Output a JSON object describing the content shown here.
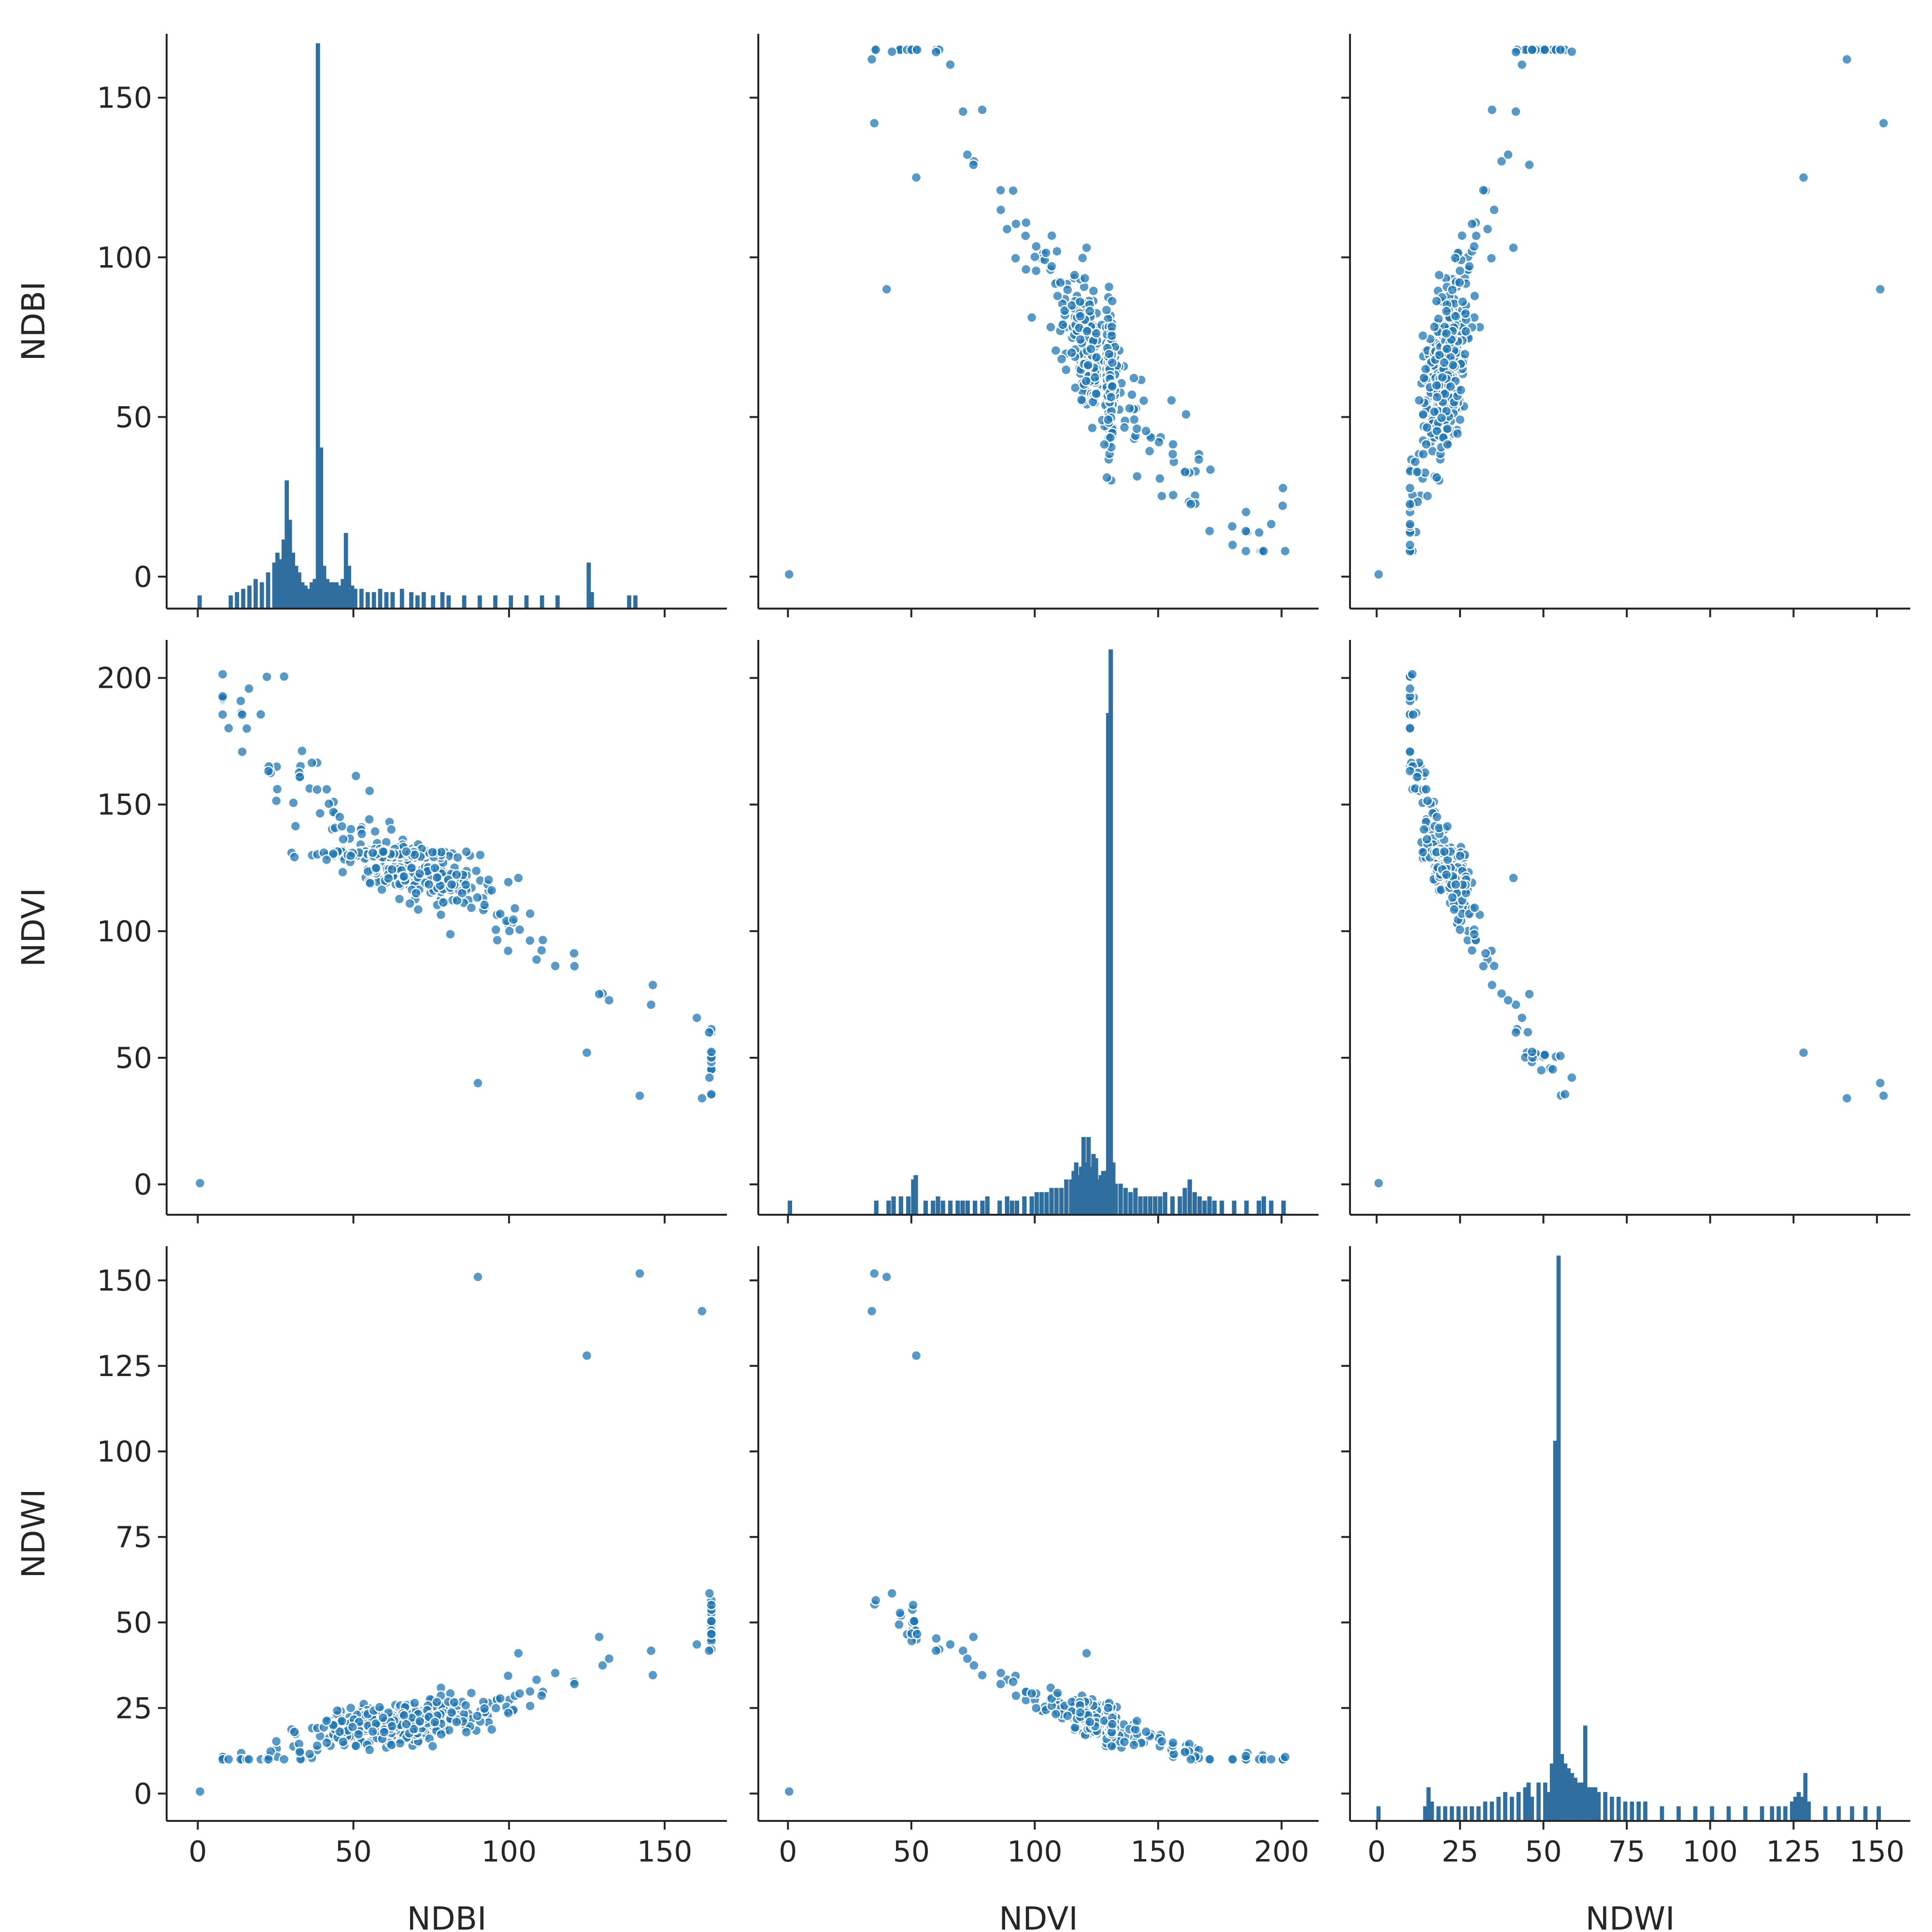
{
  "chart_data": {
    "type": "pairplot",
    "variables": [
      "NDBI",
      "NDVI",
      "NDWI"
    ],
    "colors": {
      "marker": "#1f77b4",
      "bar": "#2f6e9f",
      "edge": "#ffffff",
      "axis": "#262626"
    },
    "axes": {
      "NDBI": {
        "label": "NDBI",
        "range": [
          -10,
          170
        ],
        "ticks": [
          0,
          50,
          100,
          150
        ]
      },
      "NDVI": {
        "label": "NDVI",
        "range": [
          -12,
          215
        ],
        "ticks": [
          0,
          50,
          100,
          150,
          200
        ]
      },
      "NDWI": {
        "label": "NDWI",
        "range": [
          -8,
          160
        ],
        "ticks": [
          0,
          25,
          50,
          75,
          100,
          125,
          150
        ]
      }
    },
    "histograms": {
      "NDBI": {
        "bin_width": 1.2,
        "bins": [
          [
            0,
            1
          ],
          [
            10,
            1
          ],
          [
            12,
            2
          ],
          [
            14,
            3
          ],
          [
            16,
            4
          ],
          [
            18,
            6
          ],
          [
            20,
            5
          ],
          [
            22,
            8
          ],
          [
            24,
            11
          ],
          [
            25,
            14
          ],
          [
            26,
            12
          ],
          [
            27,
            18
          ],
          [
            28,
            36
          ],
          [
            29,
            24
          ],
          [
            30,
            14
          ],
          [
            31,
            10
          ],
          [
            32,
            8
          ],
          [
            33,
            5
          ],
          [
            34,
            4
          ],
          [
            35,
            3
          ],
          [
            36,
            5
          ],
          [
            37,
            6
          ],
          [
            38,
            169
          ],
          [
            39,
            46
          ],
          [
            40,
            10
          ],
          [
            41,
            6
          ],
          [
            42,
            5
          ],
          [
            43,
            5
          ],
          [
            44,
            5
          ],
          [
            45,
            4
          ],
          [
            46,
            6
          ],
          [
            47,
            20
          ],
          [
            48,
            10
          ],
          [
            49,
            4
          ],
          [
            50,
            3
          ],
          [
            52,
            3
          ],
          [
            54,
            2
          ],
          [
            56,
            2
          ],
          [
            58,
            3
          ],
          [
            60,
            2
          ],
          [
            62,
            2
          ],
          [
            65,
            3
          ],
          [
            68,
            2
          ],
          [
            70,
            1
          ],
          [
            72,
            2
          ],
          [
            75,
            1
          ],
          [
            78,
            2
          ],
          [
            80,
            1
          ],
          [
            85,
            1
          ],
          [
            90,
            1
          ],
          [
            95,
            1
          ],
          [
            100,
            1
          ],
          [
            105,
            1
          ],
          [
            110,
            1
          ],
          [
            115,
            1
          ],
          [
            125,
            11
          ],
          [
            126,
            2
          ],
          [
            138,
            1
          ],
          [
            140,
            1
          ]
        ]
      },
      "NDVI": {
        "bin_width": 1.6,
        "bins": [
          [
            0,
            1
          ],
          [
            35,
            1
          ],
          [
            40,
            1
          ],
          [
            42,
            2
          ],
          [
            45,
            2
          ],
          [
            48,
            2
          ],
          [
            50,
            6
          ],
          [
            51,
            7
          ],
          [
            55,
            1
          ],
          [
            58,
            1
          ],
          [
            60,
            2
          ],
          [
            62,
            1
          ],
          [
            65,
            1
          ],
          [
            68,
            1
          ],
          [
            70,
            1
          ],
          [
            72,
            1
          ],
          [
            75,
            1
          ],
          [
            78,
            1
          ],
          [
            80,
            2
          ],
          [
            85,
            1
          ],
          [
            88,
            2
          ],
          [
            90,
            1
          ],
          [
            92,
            1
          ],
          [
            95,
            2
          ],
          [
            98,
            2
          ],
          [
            100,
            3
          ],
          [
            102,
            3
          ],
          [
            104,
            3
          ],
          [
            106,
            4
          ],
          [
            108,
            4
          ],
          [
            110,
            4
          ],
          [
            112,
            6
          ],
          [
            114,
            6
          ],
          [
            115,
            8
          ],
          [
            116,
            10
          ],
          [
            117,
            7
          ],
          [
            118,
            9
          ],
          [
            119,
            16
          ],
          [
            120,
            10
          ],
          [
            121,
            16
          ],
          [
            122,
            9
          ],
          [
            123,
            12
          ],
          [
            124,
            11
          ],
          [
            125,
            6
          ],
          [
            126,
            7
          ],
          [
            127,
            8
          ],
          [
            128,
            8
          ],
          [
            129,
            116
          ],
          [
            130,
            131
          ],
          [
            131,
            10
          ],
          [
            132,
            5
          ],
          [
            134,
            5
          ],
          [
            136,
            4
          ],
          [
            138,
            3
          ],
          [
            140,
            4
          ],
          [
            142,
            2
          ],
          [
            144,
            2
          ],
          [
            146,
            2
          ],
          [
            148,
            2
          ],
          [
            150,
            2
          ],
          [
            152,
            3
          ],
          [
            155,
            2
          ],
          [
            158,
            2
          ],
          [
            160,
            4
          ],
          [
            162,
            6
          ],
          [
            164,
            3
          ],
          [
            166,
            2
          ],
          [
            168,
            1
          ],
          [
            170,
            2
          ],
          [
            172,
            1
          ],
          [
            175,
            1
          ],
          [
            180,
            1
          ],
          [
            185,
            1
          ],
          [
            190,
            1
          ],
          [
            192,
            2
          ],
          [
            195,
            1
          ],
          [
            200,
            1
          ]
        ]
      },
      "NDWI": {
        "bin_width": 1.1,
        "bins": [
          [
            0,
            1
          ],
          [
            14,
            1
          ],
          [
            15,
            5
          ],
          [
            16,
            2
          ],
          [
            18,
            1
          ],
          [
            20,
            1
          ],
          [
            22,
            1
          ],
          [
            24,
            1
          ],
          [
            26,
            1
          ],
          [
            28,
            1
          ],
          [
            30,
            1
          ],
          [
            32,
            2
          ],
          [
            34,
            2
          ],
          [
            36,
            3
          ],
          [
            38,
            4
          ],
          [
            40,
            3
          ],
          [
            42,
            4
          ],
          [
            44,
            5
          ],
          [
            45,
            6
          ],
          [
            46,
            3
          ],
          [
            48,
            6
          ],
          [
            50,
            6
          ],
          [
            51,
            4
          ],
          [
            52,
            10
          ],
          [
            53,
            78
          ],
          [
            54,
            117
          ],
          [
            55,
            12
          ],
          [
            56,
            10
          ],
          [
            57,
            9
          ],
          [
            58,
            8
          ],
          [
            59,
            7
          ],
          [
            60,
            6
          ],
          [
            61,
            6
          ],
          [
            62,
            18
          ],
          [
            63,
            5
          ],
          [
            64,
            5
          ],
          [
            65,
            5
          ],
          [
            66,
            4
          ],
          [
            68,
            4
          ],
          [
            70,
            3
          ],
          [
            72,
            3
          ],
          [
            74,
            2
          ],
          [
            76,
            2
          ],
          [
            78,
            2
          ],
          [
            80,
            2
          ],
          [
            85,
            1
          ],
          [
            90,
            1
          ],
          [
            95,
            1
          ],
          [
            100,
            1
          ],
          [
            105,
            1
          ],
          [
            110,
            1
          ],
          [
            115,
            1
          ],
          [
            118,
            1
          ],
          [
            120,
            1
          ],
          [
            122,
            1
          ],
          [
            124,
            2
          ],
          [
            125,
            3
          ],
          [
            126,
            4
          ],
          [
            127,
            3
          ],
          [
            128,
            8
          ],
          [
            129,
            2
          ],
          [
            134,
            1
          ],
          [
            138,
            1
          ],
          [
            142,
            1
          ],
          [
            146,
            1
          ],
          [
            150,
            1
          ]
        ]
      }
    }
  }
}
